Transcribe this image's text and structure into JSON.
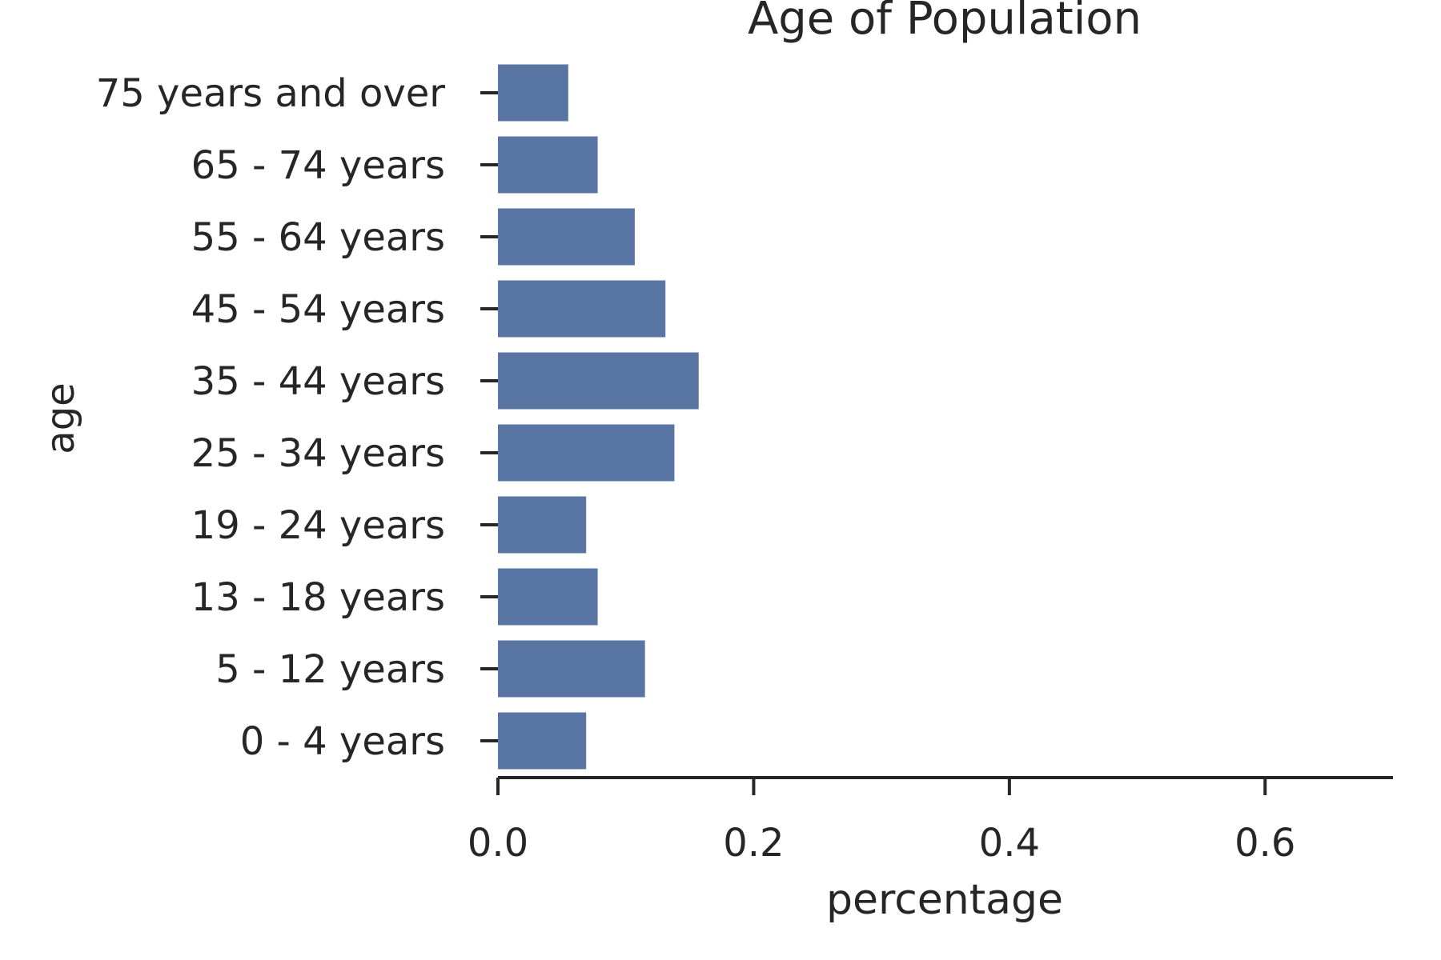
{
  "chart_data": {
    "type": "bar",
    "orientation": "horizontal",
    "title": "Age of Population",
    "xlabel": "percentage",
    "ylabel": "age",
    "categories": [
      "75 years and over",
      "65 - 74 years",
      "55 - 64 years",
      "45 - 54 years",
      "35 - 44 years",
      "25 - 34 years",
      "19 - 24 years",
      "13 - 18 years",
      "5 - 12 years",
      "0 - 4 years"
    ],
    "values": [
      0.055,
      0.078,
      0.107,
      0.131,
      0.157,
      0.138,
      0.069,
      0.078,
      0.115,
      0.069
    ],
    "xlim": [
      0,
      0.7
    ],
    "xticks": [
      0.0,
      0.2,
      0.4,
      0.6
    ],
    "xtick_labels": [
      "0.0",
      "0.2",
      "0.4",
      "0.6"
    ],
    "grid": false,
    "legend": "none",
    "bar_color": "#5975a4",
    "text_color": "#262626"
  }
}
